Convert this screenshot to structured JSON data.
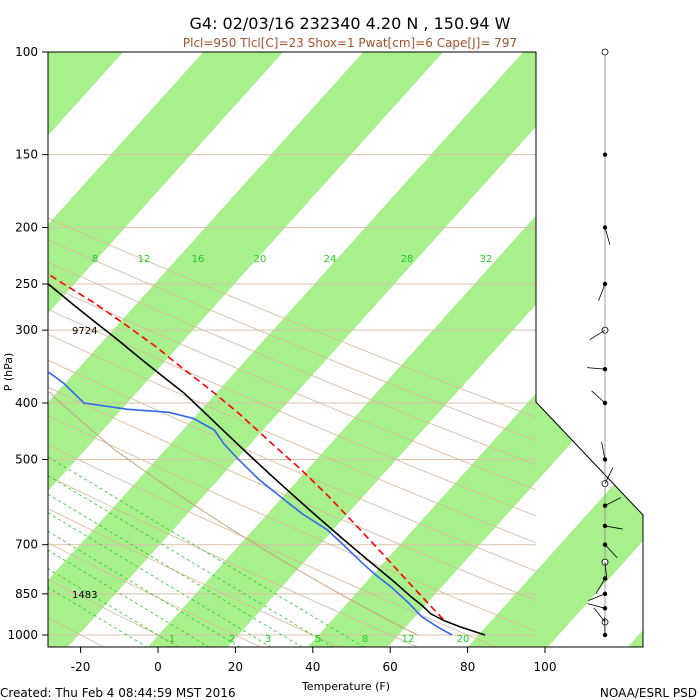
{
  "header": {
    "title": "G4: 02/03/16 232340   4.20 N , 150.94 W",
    "subtitle": "Plcl=950 Tlcl[C]=23 Shox=1 Pwat[cm]=6 Cape[J]= 797"
  },
  "footer": {
    "created": "Created: Thu Feb  4 08:44:59 MST 2016",
    "credit": "NOAA/ESRL PSD"
  },
  "chart_data": {
    "type": "line",
    "title": "G4: 02/03/16 232340   4.20 N , 150.94 W",
    "xlabel": "Temperature (F)",
    "ylabel": "P (hPa)",
    "x_ticks": [
      "-20",
      "0",
      "20",
      "40",
      "60",
      "80",
      "100"
    ],
    "x_tick_values": [
      -20,
      0,
      20,
      40,
      60,
      80,
      100
    ],
    "y_ticks": [
      "100",
      "150",
      "200",
      "250",
      "300",
      "400",
      "500",
      "700",
      "850",
      "1000"
    ],
    "y_tick_values": [
      100,
      150,
      200,
      250,
      300,
      400,
      500,
      700,
      850,
      1000
    ],
    "y_scale": "log",
    "xlim": [
      -28,
      112
    ],
    "ylim": [
      1050,
      100
    ],
    "mixing_ratio_labels": [
      "8",
      "12",
      "16",
      "20",
      "24",
      "28",
      "32"
    ],
    "mixing_ratio_low_labels": [
      "1",
      "2",
      "3",
      "5",
      "8",
      "12",
      "20"
    ],
    "height_labels": [
      {
        "pressure": 300,
        "text": "9724"
      },
      {
        "pressure": 850,
        "text": "1483"
      }
    ],
    "series": [
      {
        "role": "temperature",
        "color": "#000000",
        "points": [
          [
            84.5,
            1000
          ],
          [
            80,
            970
          ],
          [
            77,
            945
          ],
          [
            75,
            920
          ],
          [
            74.5,
            890
          ],
          [
            73.5,
            860
          ],
          [
            72.8,
            830
          ],
          [
            72,
            800
          ],
          [
            71,
            770
          ],
          [
            70,
            740
          ],
          [
            69,
            710
          ],
          [
            68,
            680
          ],
          [
            67,
            650
          ],
          [
            66,
            620
          ],
          [
            65,
            590
          ],
          [
            64,
            560
          ],
          [
            63,
            530
          ],
          [
            62,
            500
          ],
          [
            61,
            470
          ],
          [
            60,
            440
          ],
          [
            59,
            410
          ],
          [
            58,
            385
          ],
          [
            56,
            360
          ],
          [
            54,
            335
          ],
          [
            52,
            310
          ],
          [
            50,
            290
          ],
          [
            48,
            270
          ],
          [
            46,
            250
          ],
          [
            44,
            230
          ],
          [
            42,
            215
          ]
        ]
      },
      {
        "role": "parcel",
        "color": "#ff0000",
        "points": [
          [
            77,
            940
          ],
          [
            76.5,
            880
          ],
          [
            76,
            820
          ],
          [
            75.5,
            760
          ],
          [
            75,
            700
          ],
          [
            74.3,
            640
          ],
          [
            73.5,
            580
          ],
          [
            72,
            520
          ],
          [
            70,
            470
          ],
          [
            68,
            420
          ],
          [
            65.5,
            380
          ],
          [
            63,
            350
          ],
          [
            60.5,
            320
          ],
          [
            57.5,
            295
          ],
          [
            54,
            270
          ],
          [
            50,
            250
          ],
          [
            46,
            230
          ]
        ]
      },
      {
        "role": "dewpoint",
        "color": "#3366ee",
        "points": [
          [
            76,
            1000
          ],
          [
            74,
            970
          ],
          [
            72,
            930
          ],
          [
            71.5,
            880
          ],
          [
            70.5,
            830
          ],
          [
            69,
            790
          ],
          [
            68,
            750
          ],
          [
            67,
            700
          ],
          [
            66,
            660
          ],
          [
            63,
            620
          ],
          [
            61,
            580
          ],
          [
            59,
            540
          ],
          [
            58,
            500
          ],
          [
            57.5,
            470
          ],
          [
            58,
            445
          ],
          [
            55,
            425
          ],
          [
            50,
            415
          ],
          [
            40,
            410
          ],
          [
            30,
            400
          ],
          [
            29,
            370
          ],
          [
            27,
            350
          ],
          [
            24,
            340
          ],
          [
            18,
            330
          ],
          [
            10,
            320
          ],
          [
            -19,
            310
          ],
          [
            -19,
            300
          ],
          [
            -5,
            298
          ],
          [
            -6,
            288
          ],
          [
            -13,
            270
          ],
          [
            -13,
            255
          ],
          [
            -10,
            250
          ],
          [
            10,
            245
          ],
          [
            20,
            238
          ],
          [
            26,
            228
          ],
          [
            23,
            212
          ]
        ]
      },
      {
        "role": "virtual-temperature",
        "color": "#c8a27a",
        "points": [
          [
            67,
            1000
          ],
          [
            64,
            960
          ],
          [
            61,
            920
          ],
          [
            58,
            880
          ],
          [
            55,
            840
          ],
          [
            52,
            800
          ],
          [
            49,
            760
          ],
          [
            46,
            720
          ],
          [
            43,
            680
          ],
          [
            40,
            640
          ],
          [
            37,
            600
          ],
          [
            34,
            560
          ],
          [
            31,
            520
          ],
          [
            28,
            480
          ],
          [
            26,
            440
          ],
          [
            24,
            400
          ],
          [
            22.5,
            360
          ],
          [
            21.5,
            320
          ],
          [
            21,
            290
          ],
          [
            20.5,
            260
          ],
          [
            20,
            235
          ],
          [
            19.5,
            215
          ]
        ]
      }
    ]
  },
  "wind_profile": {
    "levels": [
      100,
      150,
      200,
      250,
      300,
      350,
      400,
      500,
      550,
      600,
      650,
      700,
      750,
      800,
      850,
      900,
      950,
      1000
    ]
  }
}
